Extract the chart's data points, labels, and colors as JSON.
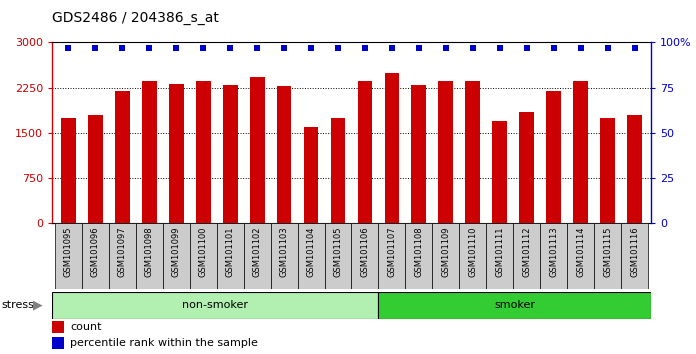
{
  "title": "GDS2486 / 204386_s_at",
  "samples": [
    "GSM101095",
    "GSM101096",
    "GSM101097",
    "GSM101098",
    "GSM101099",
    "GSM101100",
    "GSM101101",
    "GSM101102",
    "GSM101103",
    "GSM101104",
    "GSM101105",
    "GSM101106",
    "GSM101107",
    "GSM101108",
    "GSM101109",
    "GSM101110",
    "GSM101111",
    "GSM101112",
    "GSM101113",
    "GSM101114",
    "GSM101115",
    "GSM101116"
  ],
  "counts": [
    1750,
    1800,
    2200,
    2360,
    2310,
    2360,
    2300,
    2420,
    2270,
    1590,
    1750,
    2360,
    2500,
    2290,
    2360,
    2360,
    1690,
    1850,
    2200,
    2360,
    1750,
    1800
  ],
  "percentile_ranks": [
    97,
    97,
    97,
    97,
    97,
    97,
    97,
    97,
    97,
    97,
    97,
    97,
    97,
    97,
    97,
    97,
    97,
    97,
    97,
    97,
    97,
    97
  ],
  "non_smoker_count": 12,
  "smoker_count": 10,
  "bar_color": "#CC0000",
  "dot_color": "#0000CC",
  "left_axis_color": "#CC0000",
  "right_axis_color": "#0000CC",
  "yticks_left": [
    0,
    750,
    1500,
    2250,
    3000
  ],
  "yticks_right": [
    0,
    25,
    50,
    75,
    100
  ],
  "ylim_left": [
    0,
    3000
  ],
  "ylim_right": [
    0,
    100
  ],
  "non_smoker_color": "#b2f0b2",
  "smoker_color": "#33cc33",
  "stress_label": "stress",
  "non_smoker_label": "non-smoker",
  "smoker_label": "smoker",
  "legend_count_label": "count",
  "legend_pct_label": "percentile rank within the sample",
  "background_color": "#ffffff",
  "tick_label_bg": "#cccccc",
  "bar_width": 0.55
}
